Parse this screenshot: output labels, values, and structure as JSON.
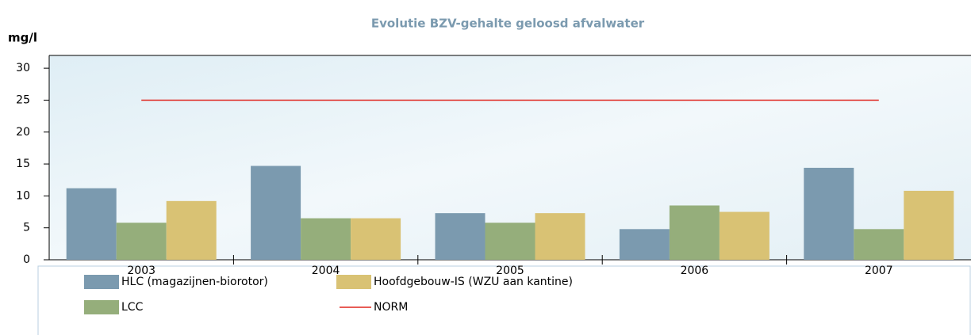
{
  "chart_data": {
    "type": "bar",
    "title": "Evolutie BZV-gehalte geloosd afvalwater",
    "y_label": "mg/l",
    "categories": [
      "2003",
      "2004",
      "2005",
      "2006",
      "2007"
    ],
    "series": [
      {
        "name": "HLC (magazijnen-biorotor)",
        "color": "#7b9aaf",
        "values": [
          11.2,
          14.7,
          7.3,
          4.8,
          14.4
        ]
      },
      {
        "name": "LCC",
        "color": "#95ae7b",
        "values": [
          5.8,
          6.5,
          5.8,
          8.5,
          4.8
        ]
      },
      {
        "name": "Hoofdgebouw-IS (WZU aan kantine)",
        "color": "#d9c274",
        "values": [
          9.2,
          6.5,
          7.3,
          7.5,
          10.8
        ]
      },
      {
        "name": "NORM",
        "color": "#e0261f",
        "type": "line",
        "values": [
          25,
          25,
          25,
          25,
          25
        ]
      }
    ],
    "ylim": [
      0,
      32
    ],
    "yticks": [
      0,
      5,
      10,
      15,
      20,
      25,
      30
    ],
    "grid": false
  }
}
